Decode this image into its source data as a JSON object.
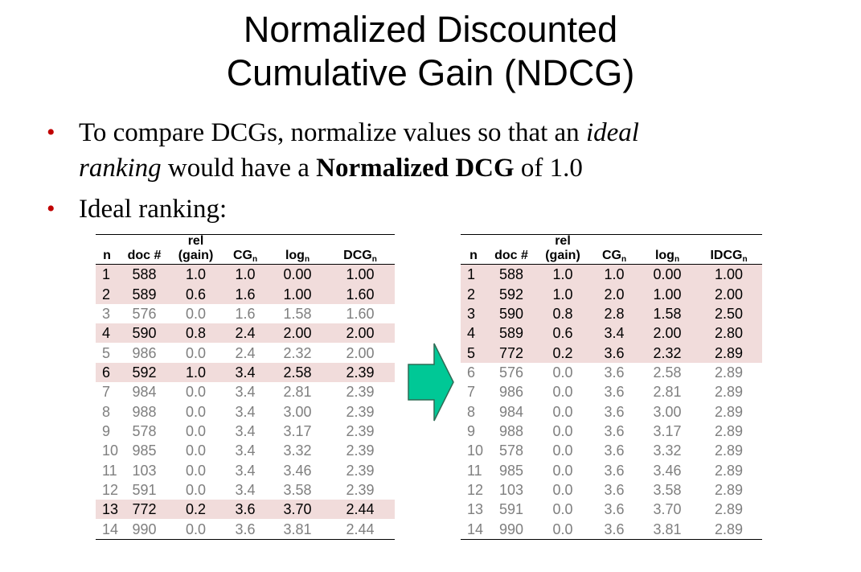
{
  "title": {
    "line1": "Normalized Discounted",
    "line2": "Cumulative Gain (NDCG)"
  },
  "bullets": {
    "b1": {
      "t1": "To compare DCGs, normalize values so that an ",
      "t2": "ideal",
      "t3": "ranking",
      "t4": " would have a ",
      "t5": "Normalized DCG",
      "t6": " of 1.0"
    },
    "b2": {
      "text": "Ideal ranking:"
    }
  },
  "tableA": {
    "header_top": "rel",
    "headers": {
      "n": "n",
      "doc": "doc #",
      "gain": "(gain)",
      "cg": "CG",
      "log": "log",
      "dcg": "DCG",
      "sub": "n"
    },
    "rows": [
      [
        "1",
        "588",
        "1.0",
        "1.0",
        "0.00",
        "1.00"
      ],
      [
        "2",
        "589",
        "0.6",
        "1.6",
        "1.00",
        "1.60"
      ],
      [
        "3",
        "576",
        "0.0",
        "1.6",
        "1.58",
        "1.60"
      ],
      [
        "4",
        "590",
        "0.8",
        "2.4",
        "2.00",
        "2.00"
      ],
      [
        "5",
        "986",
        "0.0",
        "2.4",
        "2.32",
        "2.00"
      ],
      [
        "6",
        "592",
        "1.0",
        "3.4",
        "2.58",
        "2.39"
      ],
      [
        "7",
        "984",
        "0.0",
        "3.4",
        "2.81",
        "2.39"
      ],
      [
        "8",
        "988",
        "0.0",
        "3.4",
        "3.00",
        "2.39"
      ],
      [
        "9",
        "578",
        "0.0",
        "3.4",
        "3.17",
        "2.39"
      ],
      [
        "10",
        "985",
        "0.0",
        "3.4",
        "3.32",
        "2.39"
      ],
      [
        "11",
        "103",
        "0.0",
        "3.4",
        "3.46",
        "2.39"
      ],
      [
        "12",
        "591",
        "0.0",
        "3.4",
        "3.58",
        "2.39"
      ],
      [
        "13",
        "772",
        "0.2",
        "3.6",
        "3.70",
        "2.44"
      ],
      [
        "14",
        "990",
        "0.0",
        "3.6",
        "3.81",
        "2.44"
      ]
    ],
    "highlight": [
      true,
      true,
      false,
      true,
      false,
      true,
      false,
      false,
      false,
      false,
      false,
      false,
      true,
      false
    ]
  },
  "tableB": {
    "header_top": "rel",
    "headers": {
      "n": "n",
      "doc": "doc #",
      "gain": "(gain)",
      "cg": "CG",
      "log": "log",
      "dcg": "IDCG",
      "sub": "n"
    },
    "rows": [
      [
        "1",
        "588",
        "1.0",
        "1.0",
        "0.00",
        "1.00"
      ],
      [
        "2",
        "592",
        "1.0",
        "2.0",
        "1.00",
        "2.00"
      ],
      [
        "3",
        "590",
        "0.8",
        "2.8",
        "1.58",
        "2.50"
      ],
      [
        "4",
        "589",
        "0.6",
        "3.4",
        "2.00",
        "2.80"
      ],
      [
        "5",
        "772",
        "0.2",
        "3.6",
        "2.32",
        "2.89"
      ],
      [
        "6",
        "576",
        "0.0",
        "3.6",
        "2.58",
        "2.89"
      ],
      [
        "7",
        "986",
        "0.0",
        "3.6",
        "2.81",
        "2.89"
      ],
      [
        "8",
        "984",
        "0.0",
        "3.6",
        "3.00",
        "2.89"
      ],
      [
        "9",
        "988",
        "0.0",
        "3.6",
        "3.17",
        "2.89"
      ],
      [
        "10",
        "578",
        "0.0",
        "3.6",
        "3.32",
        "2.89"
      ],
      [
        "11",
        "985",
        "0.0",
        "3.6",
        "3.46",
        "2.89"
      ],
      [
        "12",
        "103",
        "0.0",
        "3.6",
        "3.58",
        "2.89"
      ],
      [
        "13",
        "591",
        "0.0",
        "3.6",
        "3.70",
        "2.89"
      ],
      [
        "14",
        "990",
        "0.0",
        "3.6",
        "3.81",
        "2.89"
      ]
    ],
    "highlight": [
      true,
      true,
      true,
      true,
      true,
      false,
      false,
      false,
      false,
      false,
      false,
      false,
      false,
      false
    ]
  },
  "colors": {
    "highlight_row": "#f1dcdb",
    "dim_text": "#7f7f7f",
    "arrow_fill": "#00c896",
    "bullet": "#c00000"
  },
  "icons": {
    "arrow": "right-arrow-icon"
  }
}
